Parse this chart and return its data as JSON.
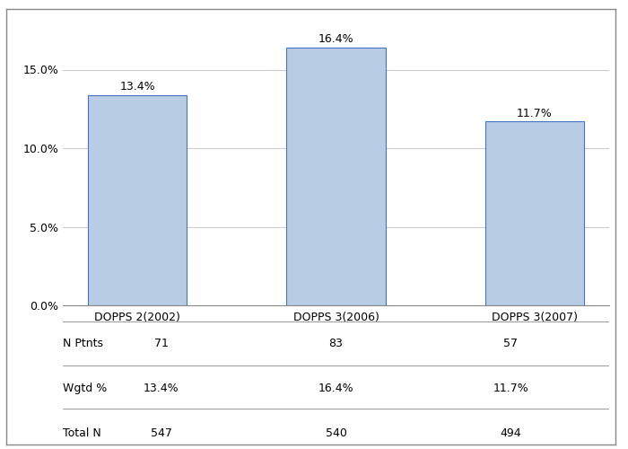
{
  "categories": [
    "DOPPS 2(2002)",
    "DOPPS 3(2006)",
    "DOPPS 3(2007)"
  ],
  "values": [
    13.4,
    16.4,
    11.7
  ],
  "bar_color": "#b8cce4",
  "bar_edge_color": "#4472c4",
  "bar_width": 0.5,
  "ylim": [
    0,
    18
  ],
  "yticks": [
    0,
    5.0,
    10.0,
    15.0
  ],
  "ytick_labels": [
    "0.0%",
    "5.0%",
    "10.0%",
    "15.0%"
  ],
  "value_labels": [
    "13.4%",
    "16.4%",
    "11.7%"
  ],
  "table_rows": [
    "N Ptnts",
    "Wgtd %",
    "Total N"
  ],
  "table_data": [
    [
      "71",
      "83",
      "57"
    ],
    [
      "13.4%",
      "16.4%",
      "11.7%"
    ],
    [
      "547",
      "540",
      "494"
    ]
  ],
  "background_color": "#ffffff",
  "grid_color": "#cccccc",
  "font_size": 9,
  "bar_label_font_size": 9
}
